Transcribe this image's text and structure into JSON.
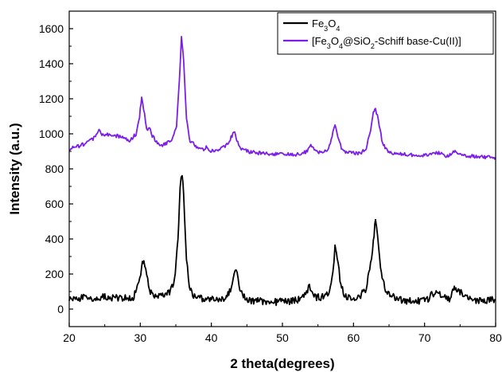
{
  "chart_data": {
    "type": "line",
    "title": "",
    "xlabel": "2 theta(degrees)",
    "ylabel": "Intensity (a.u.)",
    "xlim": [
      20,
      80
    ],
    "ylim": [
      -100,
      1700
    ],
    "x_ticks": [
      20,
      30,
      40,
      50,
      60,
      70,
      80
    ],
    "y_ticks": [
      0,
      200,
      400,
      600,
      800,
      1000,
      1200,
      1400,
      1600
    ],
    "grid": false,
    "legend_position": "top-right",
    "series": [
      {
        "name_parts": [
          {
            "t": "Fe"
          },
          {
            "t": "3",
            "sub": true
          },
          {
            "t": "O"
          },
          {
            "t": "4",
            "sub": true
          }
        ],
        "color": "#000000",
        "x": [
          20,
          21,
          22,
          23,
          24,
          25,
          26,
          27,
          28,
          29,
          29.8,
          30.2,
          30.5,
          30.9,
          31.3,
          32,
          33,
          34,
          34.8,
          35.3,
          35.6,
          35.9,
          36.1,
          36.5,
          36.9,
          37.5,
          38.5,
          40,
          41,
          42,
          42.8,
          43.2,
          43.5,
          43.9,
          44.5,
          45.5,
          47,
          49,
          51,
          52.5,
          53.4,
          53.8,
          54.2,
          54.8,
          55.5,
          56.5,
          57.1,
          57.4,
          57.7,
          58.1,
          58.8,
          59.8,
          61,
          61.8,
          62.4,
          62.8,
          63.1,
          63.4,
          63.8,
          64.4,
          65.5,
          67,
          69,
          70.5,
          71.5,
          72.5,
          73.5,
          74.3,
          75,
          76,
          77,
          78,
          79,
          80
        ],
        "y": [
          60,
          55,
          70,
          55,
          60,
          70,
          65,
          60,
          70,
          65,
          140,
          240,
          280,
          200,
          110,
          70,
          70,
          90,
          160,
          400,
          700,
          780,
          650,
          300,
          130,
          70,
          60,
          55,
          50,
          60,
          120,
          200,
          230,
          120,
          70,
          50,
          45,
          40,
          45,
          55,
          100,
          130,
          100,
          65,
          70,
          80,
          200,
          360,
          300,
          170,
          70,
          60,
          80,
          120,
          250,
          400,
          500,
          420,
          250,
          110,
          70,
          50,
          45,
          60,
          100,
          70,
          60,
          120,
          100,
          60,
          50,
          45,
          50,
          55
        ]
      },
      {
        "name_parts": [
          {
            "t": "[Fe"
          },
          {
            "t": "3",
            "sub": true
          },
          {
            "t": "O"
          },
          {
            "t": "4",
            "sub": true
          },
          {
            "t": "@SiO"
          },
          {
            "t": "2",
            "sub": true
          },
          {
            "t": "-Schiff base-Cu(II)]"
          }
        ],
        "color": "#7b1fe8",
        "x": [
          20,
          21,
          22,
          23,
          23.8,
          24.2,
          24.6,
          25.5,
          26.5,
          27.5,
          28.5,
          29.4,
          29.9,
          30.2,
          30.6,
          30.9,
          31.3,
          31.7,
          32.3,
          33,
          33.8,
          34.5,
          35.1,
          35.5,
          35.8,
          36.1,
          36.5,
          37,
          37.8,
          38.8,
          39.4,
          39.9,
          40.6,
          41.2,
          42.3,
          42.9,
          43.3,
          43.6,
          44.1,
          45,
          46.5,
          48,
          50,
          51.5,
          52.5,
          53.5,
          54,
          54.6,
          55.5,
          56.5,
          57.1,
          57.4,
          57.8,
          58.3,
          59,
          60,
          61,
          61.8,
          62.4,
          62.8,
          63.1,
          63.5,
          64.1,
          65,
          66.5,
          68,
          70,
          71.3,
          72,
          73,
          73.8,
          74.3,
          75,
          76,
          77.5,
          79,
          80
        ],
        "y": [
          915,
          925,
          940,
          960,
          990,
          1020,
          990,
          995,
          990,
          980,
          960,
          1000,
          1100,
          1210,
          1110,
          1020,
          1030,
          990,
          950,
          930,
          950,
          970,
          1050,
          1300,
          1550,
          1420,
          1080,
          960,
          930,
          910,
          930,
          900,
          910,
          910,
          940,
          990,
          1010,
          960,
          920,
          900,
          890,
          885,
          885,
          880,
          885,
          900,
          930,
          900,
          890,
          910,
          1010,
          1050,
          980,
          920,
          895,
          890,
          890,
          920,
          1020,
          1120,
          1140,
          1080,
          940,
          895,
          885,
          880,
          875,
          890,
          890,
          875,
          880,
          905,
          885,
          875,
          870,
          865,
          865
        ]
      }
    ]
  }
}
